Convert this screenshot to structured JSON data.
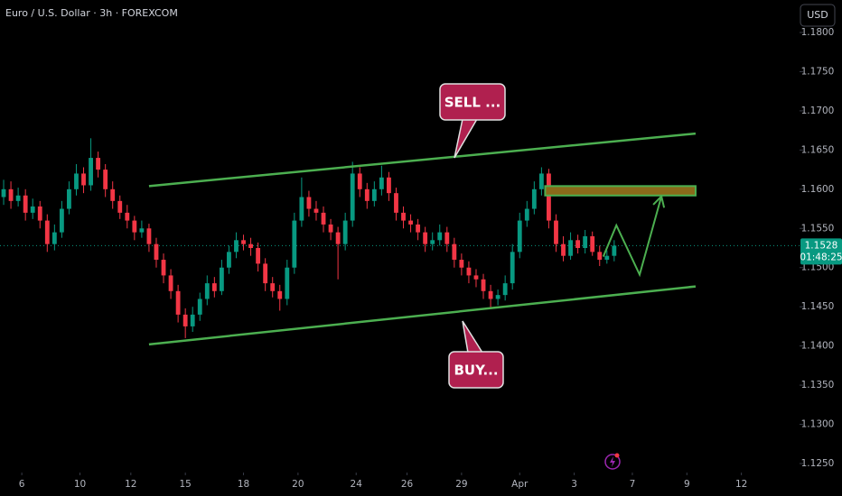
{
  "header": {
    "title": "Euro / U.S. Dollar · 3h · FOREXCOM",
    "currency": "USD"
  },
  "chart_data": {
    "type": "candlestick",
    "open": [
      1.159,
      1.16,
      1.1585,
      1.1592,
      1.157,
      1.1578,
      1.156,
      1.153,
      1.1545,
      1.1575,
      1.16,
      1.162,
      1.1605,
      1.164,
      1.1625,
      1.16,
      1.1585,
      1.157,
      1.156,
      1.1545,
      1.155,
      1.153,
      1.151,
      1.149,
      1.147,
      1.144,
      1.1425,
      1.144,
      1.146,
      1.148,
      1.147,
      1.15,
      1.152,
      1.1535,
      1.153,
      1.1525,
      1.1505,
      1.148,
      1.147,
      1.146,
      1.15,
      1.156,
      1.159,
      1.1575,
      1.157,
      1.1555,
      1.1545,
      1.153,
      1.156,
      1.162,
      1.16,
      1.1585,
      1.16,
      1.1615,
      1.1595,
      1.157,
      1.156,
      1.1555,
      1.1545,
      1.153,
      1.1535,
      1.1545,
      1.153,
      1.151,
      1.15,
      1.149,
      1.1485,
      1.147,
      1.146,
      1.1465,
      1.148,
      1.152,
      1.156,
      1.1575,
      1.16,
      1.162,
      1.156,
      1.153,
      1.1515,
      1.1535,
      1.1525,
      1.154,
      1.152,
      1.151,
      1.1515
    ],
    "high": [
      1.1612,
      1.161,
      1.1602,
      1.16,
      1.1588,
      1.1585,
      1.1568,
      1.1555,
      1.1585,
      1.161,
      1.1632,
      1.1628,
      1.1665,
      1.1648,
      1.1632,
      1.161,
      1.1592,
      1.158,
      1.1566,
      1.156,
      1.1556,
      1.1538,
      1.1518,
      1.1498,
      1.1478,
      1.1448,
      1.145,
      1.1468,
      1.149,
      1.1488,
      1.151,
      1.1528,
      1.1545,
      1.1542,
      1.1538,
      1.1532,
      1.1512,
      1.1488,
      1.1478,
      1.151,
      1.157,
      1.1615,
      1.1598,
      1.1585,
      1.1578,
      1.1562,
      1.1552,
      1.157,
      1.1635,
      1.1628,
      1.1608,
      1.161,
      1.163,
      1.1622,
      1.1602,
      1.1578,
      1.1568,
      1.1562,
      1.1552,
      1.1545,
      1.1555,
      1.1552,
      1.1538,
      1.1518,
      1.1508,
      1.1498,
      1.1492,
      1.1478,
      1.1472,
      1.149,
      1.153,
      1.157,
      1.1585,
      1.161,
      1.1628,
      1.1626,
      1.1568,
      1.154,
      1.1545,
      1.1542,
      1.1548,
      1.1546,
      1.1528,
      1.1522,
      1.1535
    ],
    "low": [
      1.158,
      1.1575,
      1.1578,
      1.156,
      1.1562,
      1.155,
      1.152,
      1.1522,
      1.1538,
      1.1568,
      1.1592,
      1.1595,
      1.1598,
      1.1615,
      1.159,
      1.1575,
      1.1562,
      1.155,
      1.1535,
      1.1538,
      1.152,
      1.15,
      1.148,
      1.146,
      1.143,
      1.141,
      1.1418,
      1.1432,
      1.1452,
      1.1462,
      1.1465,
      1.1492,
      1.1512,
      1.1522,
      1.1515,
      1.1495,
      1.147,
      1.1462,
      1.1445,
      1.1452,
      1.1492,
      1.1552,
      1.1565,
      1.156,
      1.1545,
      1.1535,
      1.1485,
      1.1522,
      1.1552,
      1.159,
      1.1575,
      1.1578,
      1.1592,
      1.1585,
      1.156,
      1.155,
      1.1545,
      1.1535,
      1.152,
      1.1522,
      1.1528,
      1.152,
      1.15,
      1.149,
      1.148,
      1.1475,
      1.146,
      1.1448,
      1.1452,
      1.1458,
      1.1472,
      1.1512,
      1.1552,
      1.1568,
      1.1592,
      1.155,
      1.152,
      1.1508,
      1.151,
      1.1518,
      1.1518,
      1.1515,
      1.1502,
      1.1505,
      1.1508
    ],
    "close": [
      1.16,
      1.1585,
      1.1592,
      1.157,
      1.1578,
      1.156,
      1.153,
      1.1545,
      1.1575,
      1.16,
      1.162,
      1.1605,
      1.164,
      1.1625,
      1.16,
      1.1585,
      1.157,
      1.156,
      1.1545,
      1.155,
      1.153,
      1.151,
      1.149,
      1.147,
      1.144,
      1.1425,
      1.144,
      1.146,
      1.148,
      1.147,
      1.15,
      1.152,
      1.1535,
      1.153,
      1.1525,
      1.1505,
      1.148,
      1.147,
      1.146,
      1.15,
      1.156,
      1.159,
      1.1575,
      1.157,
      1.1555,
      1.1545,
      1.153,
      1.156,
      1.162,
      1.16,
      1.1585,
      1.16,
      1.1615,
      1.1595,
      1.157,
      1.156,
      1.1555,
      1.1545,
      1.153,
      1.1535,
      1.1545,
      1.153,
      1.151,
      1.15,
      1.149,
      1.1485,
      1.147,
      1.146,
      1.1465,
      1.148,
      1.152,
      1.156,
      1.1575,
      1.16,
      1.162,
      1.156,
      1.153,
      1.1515,
      1.1535,
      1.1525,
      1.154,
      1.152,
      1.151,
      1.1515,
      1.1528
    ],
    "up_color": "#089981",
    "down_color": "#f23645",
    "xlim": [
      0,
      110
    ],
    "ylim": [
      1.125,
      1.18
    ],
    "yticks": [
      {
        "value": 1.18,
        "label": "1.1800"
      },
      {
        "value": 1.175,
        "label": "1.1750"
      },
      {
        "value": 1.17,
        "label": "1.1700"
      },
      {
        "value": 1.165,
        "label": "1.1650"
      },
      {
        "value": 1.16,
        "label": "1.1600"
      },
      {
        "value": 1.155,
        "label": "1.1550"
      },
      {
        "value": 1.15,
        "label": "1.1500"
      },
      {
        "value": 1.145,
        "label": "1.1450"
      },
      {
        "value": 1.14,
        "label": "1.1400"
      },
      {
        "value": 1.135,
        "label": "1.1350"
      },
      {
        "value": 1.13,
        "label": "1.1300"
      },
      {
        "value": 1.125,
        "label": "1.1250"
      }
    ],
    "xticks": [
      {
        "value": 3,
        "label": "6"
      },
      {
        "value": 11,
        "label": "10"
      },
      {
        "value": 18,
        "label": "12"
      },
      {
        "value": 25.5,
        "label": "15"
      },
      {
        "value": 33.5,
        "label": "18"
      },
      {
        "value": 41,
        "label": "20"
      },
      {
        "value": 49,
        "label": "24"
      },
      {
        "value": 56,
        "label": "26"
      },
      {
        "value": 63.5,
        "label": "29"
      },
      {
        "value": 71.5,
        "label": "Apr"
      },
      {
        "value": 79,
        "label": "3"
      },
      {
        "value": 87,
        "label": "7"
      },
      {
        "value": 94.5,
        "label": "9"
      },
      {
        "value": 102,
        "label": "12"
      }
    ],
    "last_price": 1.1528,
    "countdown": "01:48:25",
    "last_color": "#089981",
    "drawing_color": "#4caf50",
    "zone_color": "#8a6a1a",
    "channel": [
      {
        "x": [
          20.5,
          95.7
        ],
        "y": [
          1.1604,
          1.1671
        ]
      },
      {
        "x": [
          20.5,
          95.7
        ],
        "y": [
          1.1402,
          1.1476
        ]
      }
    ],
    "zone": {
      "x": [
        75,
        95.7
      ],
      "y": [
        1.1592,
        1.1604
      ]
    },
    "projection": {
      "x": [
        83,
        84.8,
        88,
        91
      ],
      "y": [
        1.1514,
        1.1554,
        1.1491,
        1.1591
      ]
    },
    "annotations": [
      {
        "text": "SELL ..."
      },
      {
        "text": "BUY..."
      }
    ]
  }
}
